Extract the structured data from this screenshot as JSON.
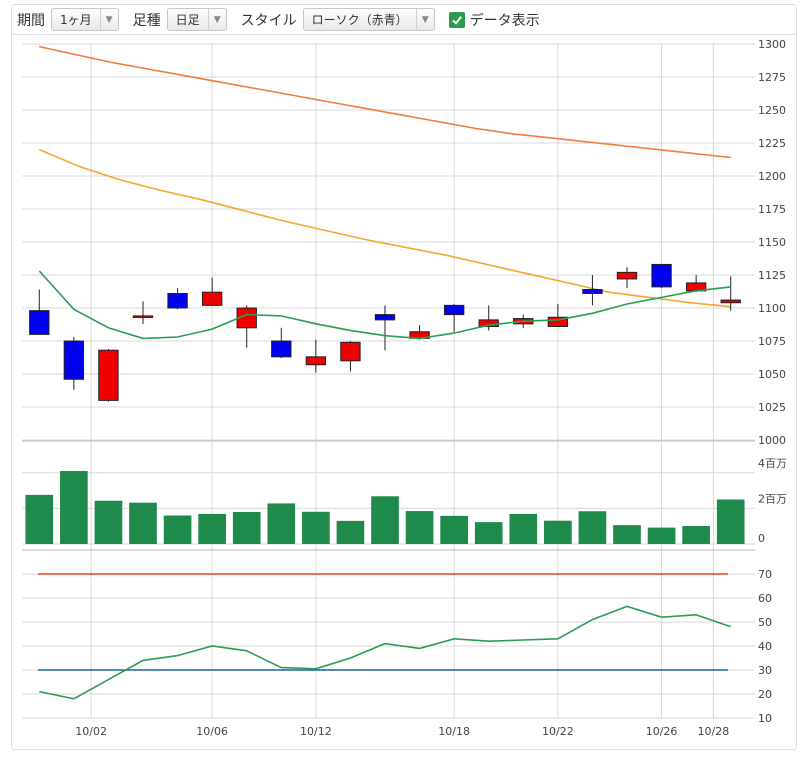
{
  "toolbar": {
    "period_label": "期間",
    "period_value": "1ヶ月",
    "interval_label": "足種",
    "interval_value": "日足",
    "style_label": "スタイル",
    "style_value": "ローソク（赤青）",
    "show_data_label": "データ表示",
    "show_data_checked": true
  },
  "colors": {
    "candle_up": "#ee0000",
    "candle_down": "#0000ee",
    "ma_short": "#2a9d55",
    "ma_mid": "#f0a830",
    "ma_long": "#f07d3c",
    "volume_bar": "#1e8a4c",
    "rsi_line": "#2a9d55",
    "rsi_upper": "#e04020",
    "rsi_lower": "#2060a0",
    "grid": "#d8d8d8"
  },
  "chart_data": [
    {
      "type": "candlestick",
      "ylim": [
        1000,
        1300
      ],
      "yticks": [
        1000,
        1025,
        1050,
        1075,
        1100,
        1125,
        1150,
        1175,
        1200,
        1225,
        1250,
        1275,
        1300
      ],
      "xtick_labels": [
        "10/02",
        "10/06",
        "10/12",
        "10/18",
        "10/22",
        "10/26",
        "10/28"
      ],
      "xtick_index": [
        2,
        5.5,
        8.5,
        12.5,
        15.5,
        18.5,
        20
      ],
      "candles": [
        {
          "o": 1098,
          "h": 1114,
          "l": 1080,
          "c": 1080
        },
        {
          "o": 1075,
          "h": 1078,
          "l": 1038,
          "c": 1046
        },
        {
          "o": 1030,
          "h": 1069,
          "l": 1029,
          "c": 1068
        },
        {
          "o": 1094,
          "h": 1105,
          "l": 1088,
          "c": 1094
        },
        {
          "o": 1111,
          "h": 1115,
          "l": 1099,
          "c": 1100
        },
        {
          "o": 1102,
          "h": 1123,
          "l": 1102,
          "c": 1112
        },
        {
          "o": 1085,
          "h": 1102,
          "l": 1070,
          "c": 1100
        },
        {
          "o": 1075,
          "h": 1085,
          "l": 1062,
          "c": 1063
        },
        {
          "o": 1057,
          "h": 1076,
          "l": 1051,
          "c": 1063
        },
        {
          "o": 1060,
          "h": 1075,
          "l": 1052,
          "c": 1074
        },
        {
          "o": 1095,
          "h": 1102,
          "l": 1068,
          "c": 1091
        },
        {
          "o": 1077,
          "h": 1087,
          "l": 1076,
          "c": 1082
        },
        {
          "o": 1102,
          "h": 1103,
          "l": 1082,
          "c": 1095
        },
        {
          "o": 1086,
          "h": 1102,
          "l": 1083,
          "c": 1091
        },
        {
          "o": 1088,
          "h": 1095,
          "l": 1085,
          "c": 1092
        },
        {
          "o": 1086,
          "h": 1103,
          "l": 1086,
          "c": 1093
        },
        {
          "o": 1114,
          "h": 1125,
          "l": 1102,
          "c": 1111
        },
        {
          "o": 1122,
          "h": 1131,
          "l": 1115,
          "c": 1127
        },
        {
          "o": 1133,
          "h": 1133,
          "l": 1115,
          "c": 1116
        },
        {
          "o": 1113,
          "h": 1125,
          "l": 1112,
          "c": 1119
        },
        {
          "o": 1104,
          "h": 1124,
          "l": 1098,
          "c": 1106
        }
      ],
      "ma_short": [
        1128,
        1099,
        1085,
        1077,
        1078,
        1084,
        1095,
        1094,
        1088,
        1083,
        1079,
        1077,
        1081,
        1087,
        1090,
        1091,
        1096,
        1103,
        1108,
        1113,
        1116
      ],
      "ma_mid": [
        1220,
        1207,
        1197,
        1189,
        1182,
        1174,
        1166,
        1159,
        1152,
        1146,
        1140,
        1133,
        1126,
        1119,
        1112,
        1108,
        1104,
        1101
      ],
      "ma_mid_offset": 0,
      "ma_long": [
        1298,
        1292,
        1286,
        1281,
        1276,
        1271,
        1266,
        1261,
        1256,
        1251,
        1246,
        1241,
        1236,
        1232,
        1229,
        1226,
        1223,
        1220,
        1217,
        1214
      ]
    },
    {
      "type": "bar",
      "ylim": [
        0,
        5000000
      ],
      "ytick_labels": [
        "0",
        "2百万",
        "4百万"
      ],
      "yticks": [
        0,
        2000000,
        4000000
      ],
      "values": [
        2760000,
        4100000,
        2430000,
        2320000,
        1600000,
        1690000,
        1800000,
        2280000,
        1810000,
        1300000,
        2680000,
        1850000,
        1580000,
        1230000,
        1690000,
        1310000,
        1840000,
        1060000,
        920000,
        1010000,
        2500000
      ]
    },
    {
      "type": "line",
      "ylim": [
        10,
        75
      ],
      "yticks": [
        10,
        20,
        30,
        40,
        50,
        60,
        70
      ],
      "values": [
        21,
        18,
        26,
        34,
        36,
        40,
        38,
        31,
        30.5,
        35,
        41,
        39,
        43,
        42,
        42.5,
        43,
        51,
        56.5,
        52,
        53,
        48
      ],
      "upper": 70,
      "lower": 30
    }
  ]
}
